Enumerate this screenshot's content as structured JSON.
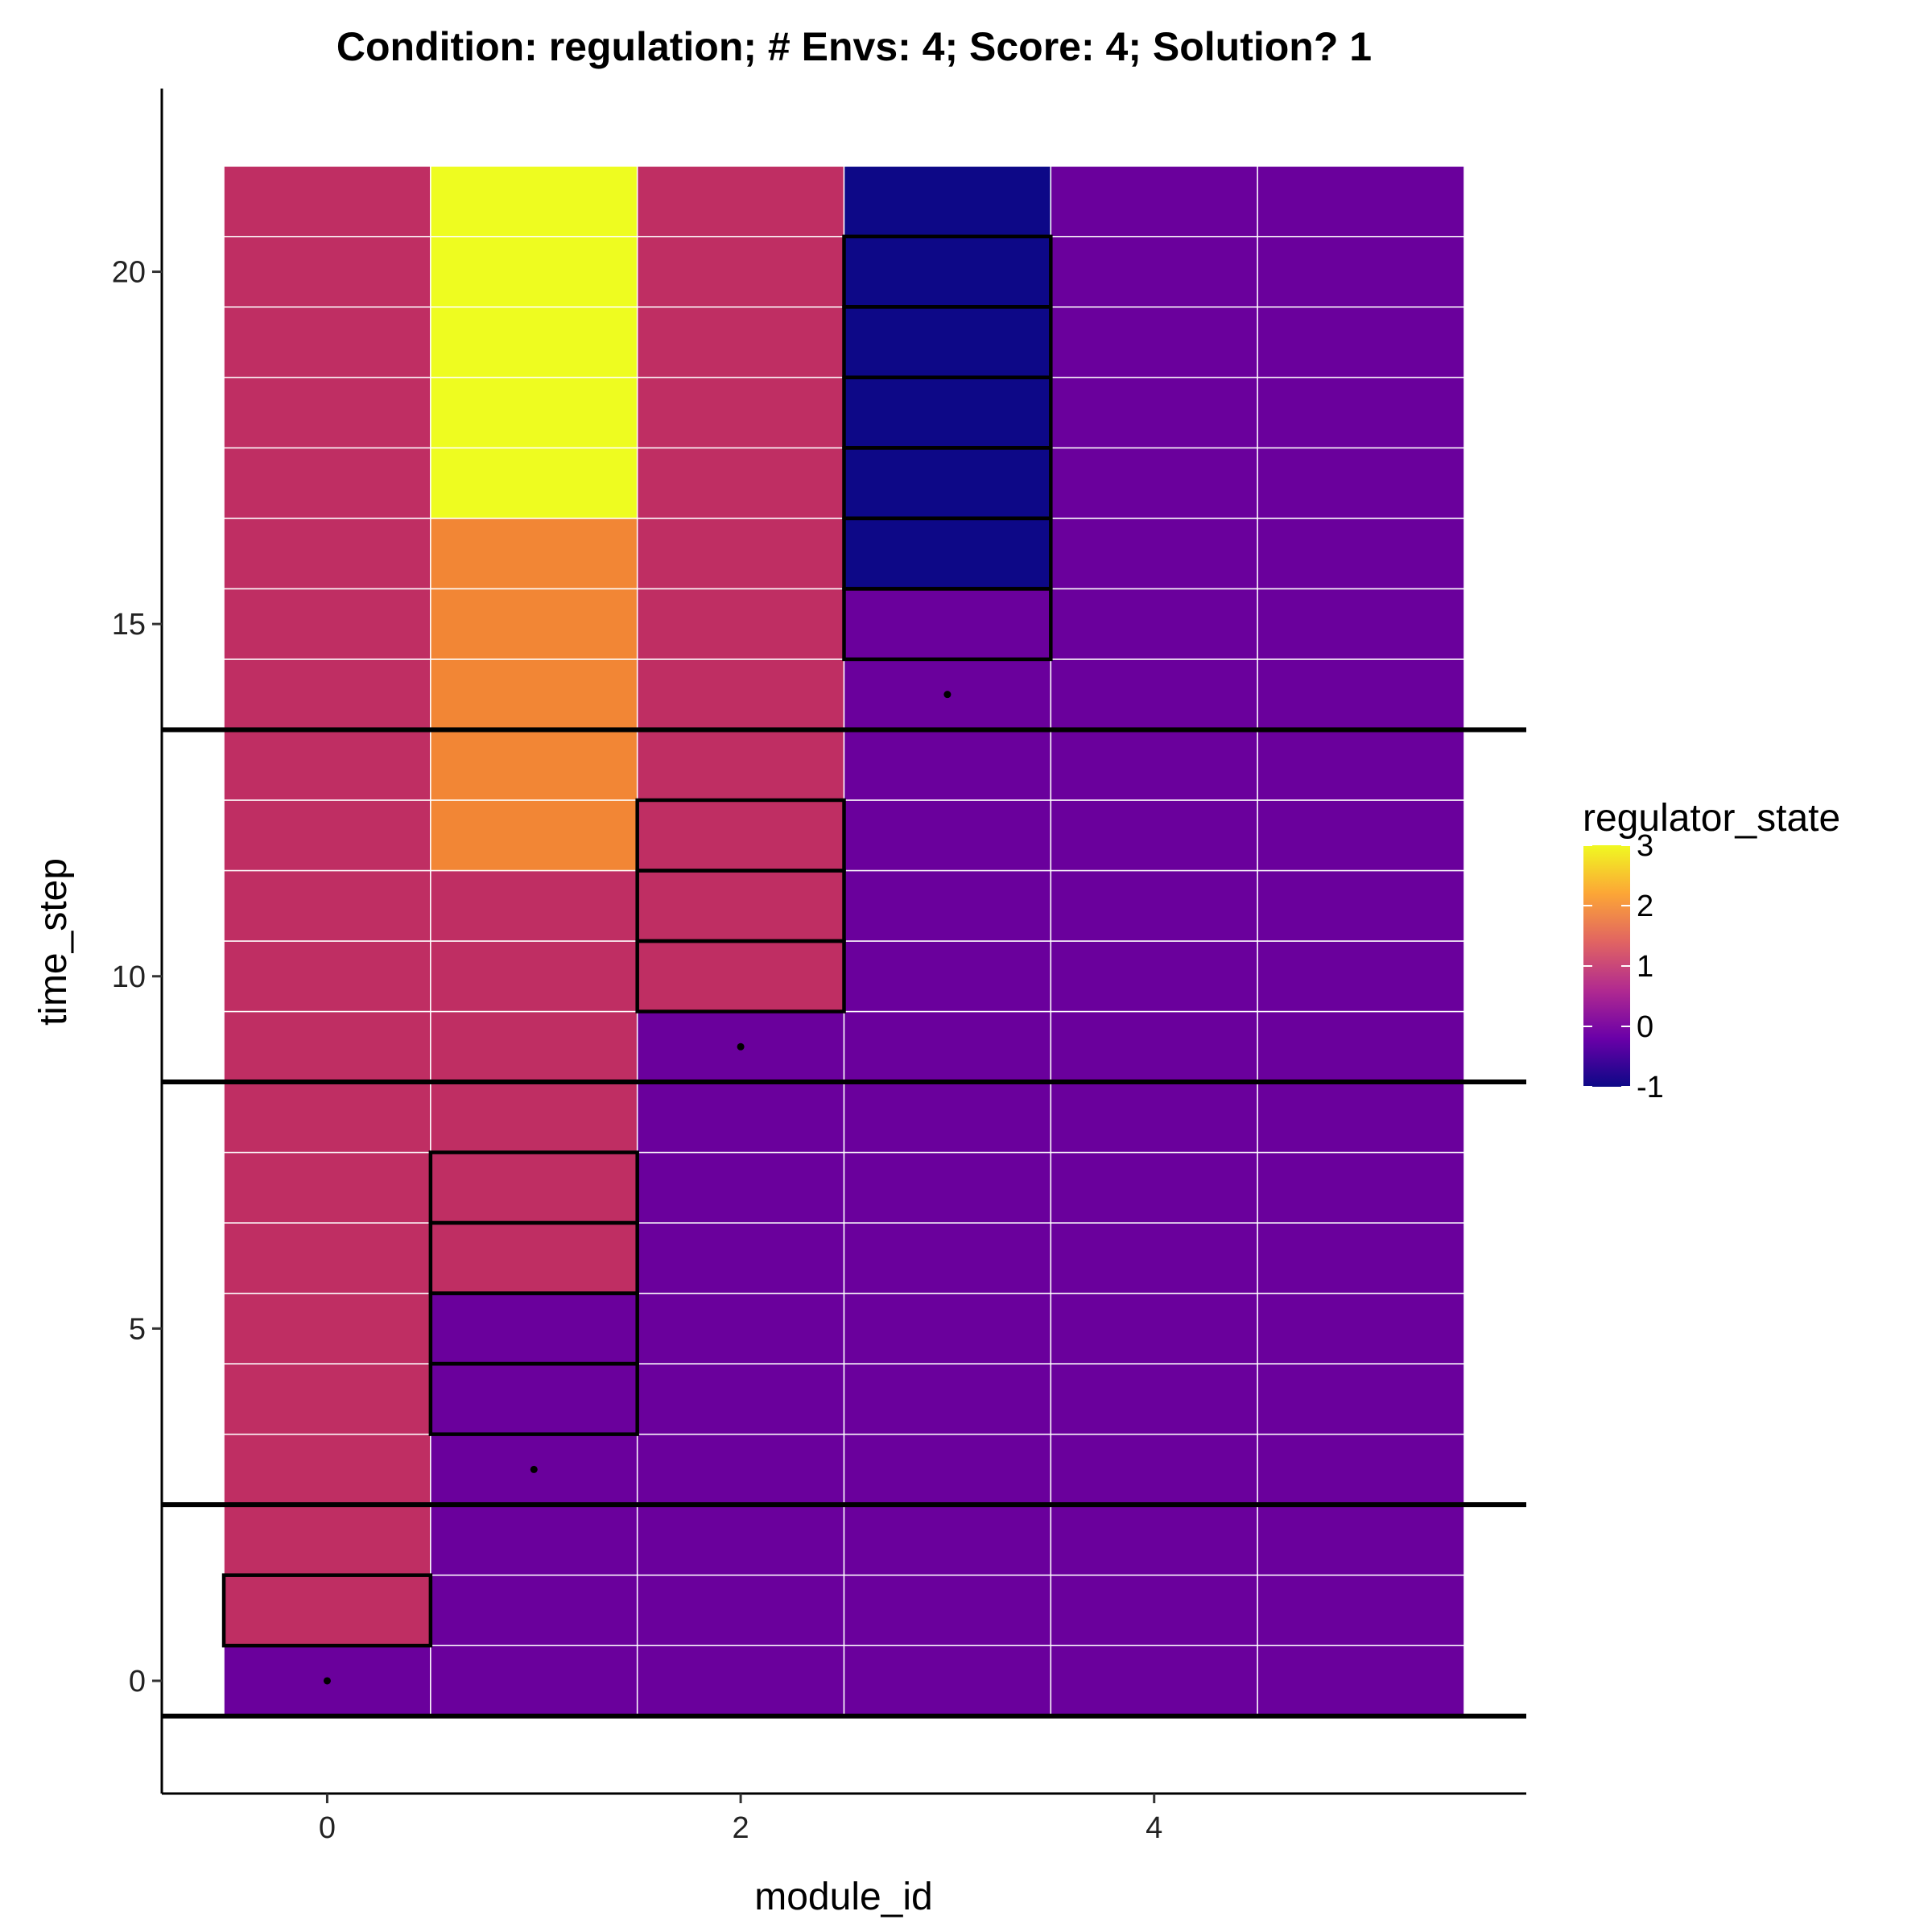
{
  "chart_data": {
    "type": "heatmap",
    "title": "Condition: regulation; # Envs: 4; Score: 4; Solution? 1",
    "xlabel": "module_id",
    "ylabel": "time_step",
    "xlim": [
      -0.8,
      5.8
    ],
    "ylim": [
      -1.6,
      22.6
    ],
    "x_ticks": [
      0,
      2,
      4
    ],
    "y_ticks": [
      0,
      5,
      10,
      15,
      20
    ],
    "modules": [
      0,
      1,
      2,
      3,
      4,
      5
    ],
    "time_steps": [
      0,
      21
    ],
    "grid": false,
    "legend": {
      "title": "regulator_state",
      "placement": "right",
      "range": [
        -1,
        3
      ],
      "ticks": [
        3,
        2,
        1,
        0,
        -1
      ],
      "colors": [
        "#0D0887",
        "#6A00A8",
        "#B12A90",
        "#E16462",
        "#FCA636",
        "#F0F921"
      ]
    },
    "cell_colors": {
      "-1": "#0D0887",
      "0": "#6A009C",
      "1": "#BF2E63",
      "2": "#F28635",
      "3": "#EEFC20"
    },
    "values": [
      [
        0,
        0,
        0,
        0,
        0,
        0
      ],
      [
        1,
        0,
        0,
        0,
        0,
        0
      ],
      [
        1,
        0,
        0,
        0,
        0,
        0
      ],
      [
        1,
        0,
        0,
        0,
        0,
        0
      ],
      [
        1,
        0,
        0,
        0,
        0,
        0
      ],
      [
        1,
        0,
        0,
        0,
        0,
        0
      ],
      [
        1,
        1,
        0,
        0,
        0,
        0
      ],
      [
        1,
        1,
        0,
        0,
        0,
        0
      ],
      [
        1,
        1,
        0,
        0,
        0,
        0
      ],
      [
        1,
        1,
        0,
        0,
        0,
        0
      ],
      [
        1,
        1,
        1,
        0,
        0,
        0
      ],
      [
        1,
        1,
        1,
        0,
        0,
        0
      ],
      [
        1,
        2,
        1,
        0,
        0,
        0
      ],
      [
        1,
        2,
        1,
        0,
        0,
        0
      ],
      [
        1,
        2,
        1,
        0,
        0,
        0
      ],
      [
        1,
        2,
        1,
        0,
        0,
        0
      ],
      [
        1,
        2,
        1,
        -1,
        0,
        0
      ],
      [
        1,
        3,
        1,
        -1,
        0,
        0
      ],
      [
        1,
        3,
        1,
        -1,
        0,
        0
      ],
      [
        1,
        3,
        1,
        -1,
        0,
        0
      ],
      [
        1,
        3,
        1,
        -1,
        0,
        0
      ],
      [
        1,
        3,
        1,
        -1,
        0,
        0
      ]
    ],
    "outlined_cells": [
      {
        "module": 0,
        "time_step": 1
      },
      {
        "module": 1,
        "time_step": 4
      },
      {
        "module": 1,
        "time_step": 5
      },
      {
        "module": 1,
        "time_step": 6
      },
      {
        "module": 1,
        "time_step": 7
      },
      {
        "module": 2,
        "time_step": 10
      },
      {
        "module": 2,
        "time_step": 11
      },
      {
        "module": 2,
        "time_step": 12
      },
      {
        "module": 3,
        "time_step": 15
      },
      {
        "module": 3,
        "time_step": 16
      },
      {
        "module": 3,
        "time_step": 17
      },
      {
        "module": 3,
        "time_step": 18
      },
      {
        "module": 3,
        "time_step": 19
      },
      {
        "module": 3,
        "time_step": 20
      }
    ],
    "points": [
      {
        "module": 0,
        "time_step": 0
      },
      {
        "module": 1,
        "time_step": 3
      },
      {
        "module": 2,
        "time_step": 9
      },
      {
        "module": 3,
        "time_step": 14
      }
    ],
    "environment_boundaries": [
      -0.5,
      2.5,
      8.5,
      13.5
    ]
  }
}
